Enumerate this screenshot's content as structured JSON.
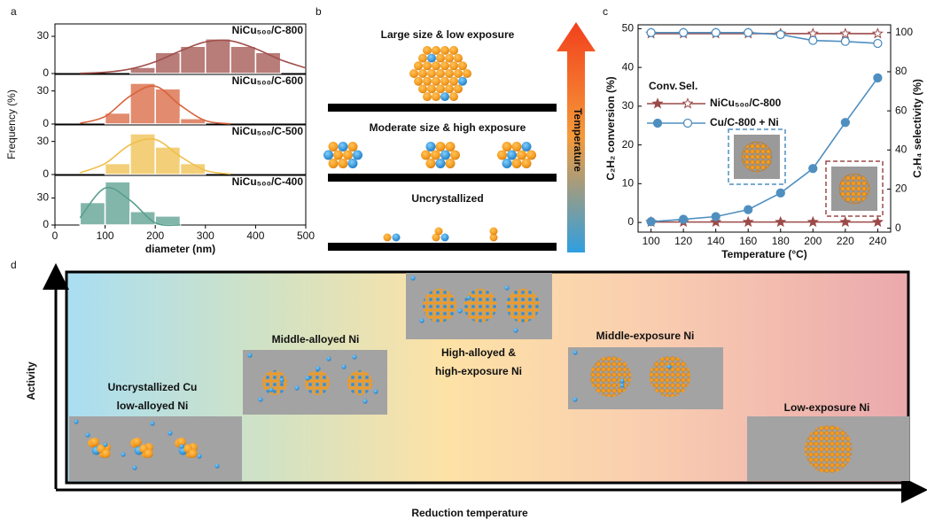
{
  "panel_labels": [
    "a",
    "b",
    "c",
    "d"
  ],
  "chart_data": [
    {
      "type": "histogram-stack",
      "x_label": "diameter (nm)",
      "y_label": "Frequency (%)",
      "xlim": [
        0,
        500
      ],
      "xticks": [
        0,
        100,
        200,
        300,
        400,
        500
      ],
      "panels": [
        {
          "name": "NiCu₅₀₀/C-800",
          "color": "#a0504c",
          "ylim": [
            0,
            40
          ],
          "yticks": [
            0,
            30
          ],
          "bins": [
            150,
            200,
            250,
            300,
            350,
            400,
            450
          ],
          "values": [
            5,
            17,
            22,
            28,
            22,
            17
          ],
          "fit": {
            "x": [
              50,
              100,
              150,
              200,
              250,
              300,
              350,
              400,
              450,
              500
            ],
            "values": [
              0.2,
              1.0,
              3.7,
              9.5,
              18.2,
              25.5,
              26.4,
              20,
              11.1,
              4.5
            ]
          }
        },
        {
          "name": "NiCu₅₀₀/C-600",
          "color": "#d8643e",
          "ylim": [
            0,
            45
          ],
          "yticks": [
            0,
            30
          ],
          "bins": [
            100,
            150,
            200,
            250,
            300
          ],
          "values": [
            10,
            37,
            32,
            5
          ],
          "fit": {
            "x": [
              50,
              100,
              150,
              200,
              250,
              300,
              350
            ],
            "values": [
              0.7,
              6.9,
              25.4,
              34.3,
              17,
              3.1,
              0.2
            ]
          }
        },
        {
          "name": "NiCu₅₀₀/C-500",
          "color": "#f0bf4c",
          "ylim": [
            0,
            45
          ],
          "yticks": [
            0,
            30
          ],
          "bins": [
            100,
            150,
            200,
            250,
            300
          ],
          "values": [
            10,
            37,
            25,
            10
          ],
          "fit": {
            "x": [
              50,
              100,
              150,
              200,
              250,
              300,
              350
            ],
            "values": [
              1.6,
              10,
              27,
              31.8,
              16.4,
              3.7,
              0.4
            ]
          }
        },
        {
          "name": "NiCu₅₀₀/C-400",
          "color": "#5a9e8f",
          "ylim": [
            0,
            55
          ],
          "yticks": [
            0,
            30
          ],
          "bins": [
            50,
            100,
            150,
            200,
            250
          ],
          "values": [
            25,
            48,
            15,
            10
          ],
          "fit": {
            "x": [
              50,
              100,
              150,
              200,
              250
            ],
            "values": [
              8,
              41,
              27.3,
              2.4,
              0.0
            ]
          }
        }
      ]
    },
    {
      "type": "line",
      "x_label": "Temperature (°C)",
      "y_label": "C₂H₂ conversion (%)",
      "y2_label": "C₂H₄ selectivity (%)",
      "x": [
        100,
        120,
        140,
        160,
        180,
        200,
        220,
        240
      ],
      "xlim": [
        92,
        248
      ],
      "xticks": [
        100,
        120,
        140,
        160,
        180,
        200,
        220,
        240
      ],
      "ylim": [
        -2.5,
        51
      ],
      "yticks": [
        0,
        10,
        20,
        30,
        40,
        50
      ],
      "y2lim": [
        -2,
        104
      ],
      "y2ticks": [
        0,
        20,
        40,
        60,
        80,
        100
      ],
      "legend_header": [
        "Conv.",
        "Sel."
      ],
      "series": [
        {
          "name": "NiCu₅₀₀/C-800",
          "color": "#9b4a48",
          "marker": "star",
          "values": [
            0.1,
            0.1,
            0.1,
            0.1,
            0.1,
            0.1,
            0.1,
            0.1
          ],
          "y2_values": [
            99.5,
            99.5,
            99.5,
            99.5,
            99.5,
            99.5,
            99.5,
            99.5
          ]
        },
        {
          "name": "Cu/C-800 + Ni",
          "color": "#4f8fc0",
          "marker": "circle",
          "values": [
            0.2,
            0.8,
            1.5,
            3.3,
            7.6,
            13.9,
            25.8,
            37.3
          ],
          "y2_values": [
            100,
            100,
            100,
            100,
            99,
            96,
            95.5,
            94.5
          ]
        }
      ]
    }
  ],
  "diagram_b": {
    "top": "Large size & low exposure",
    "middle": "Moderate size & high exposure",
    "bottom": "Uncrystallized",
    "arrow_label": "Temperature"
  },
  "diagram_d": {
    "y_axis": "Activity",
    "x_axis": "Reduction temperature",
    "stages": [
      {
        "lines": [
          "Uncrystallized Cu",
          "low-alloyed Ni"
        ]
      },
      {
        "lines": [
          "Middle-alloyed Ni"
        ]
      },
      {
        "lines": [
          "High-alloyed &",
          "high-exposure Ni"
        ]
      },
      {
        "lines": [
          "Middle-exposure Ni"
        ]
      },
      {
        "lines": [
          "Low-exposure Ni"
        ]
      }
    ]
  }
}
